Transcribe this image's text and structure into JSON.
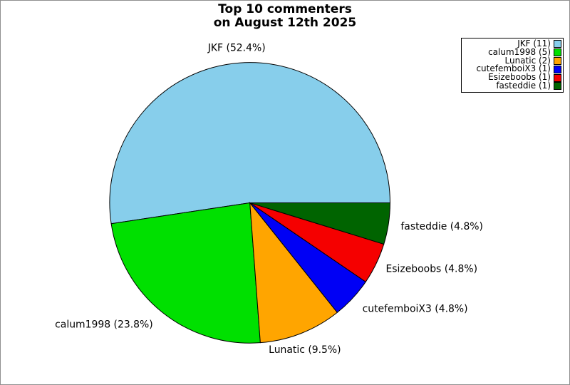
{
  "title": {
    "line1": "Top 10 commenters",
    "line2": "on August 12th 2025"
  },
  "chart_data": {
    "type": "pie",
    "title": "Top 10 commenters on August 12th 2025",
    "total_count": 21,
    "start_angle_deg": 0,
    "direction": "counterclockwise",
    "legend_position": "top-right",
    "background_color": "#FFFFFF",
    "outline_color": "#000000",
    "series": [
      {
        "name": "JKF",
        "count": 11,
        "percent": 52.4,
        "color": "#87CEEB",
        "slice_label": "JKF (52.4%)",
        "legend_label": "JKF (11)"
      },
      {
        "name": "calum1998",
        "count": 5,
        "percent": 23.8,
        "color": "#00E000",
        "slice_label": "calum1998 (23.8%)",
        "legend_label": "calum1998 (5)"
      },
      {
        "name": "Lunatic",
        "count": 2,
        "percent": 9.5,
        "color": "#FFA500",
        "slice_label": "Lunatic (9.5%)",
        "legend_label": "Lunatic (2)"
      },
      {
        "name": "cutefemboiX3",
        "count": 1,
        "percent": 4.8,
        "color": "#0000F5",
        "slice_label": "cutefemboiX3 (4.8%)",
        "legend_label": "cutefemboiX3 (1)"
      },
      {
        "name": "Esizeboobs",
        "count": 1,
        "percent": 4.8,
        "color": "#F50000",
        "slice_label": "Esizeboobs (4.8%)",
        "legend_label": "Esizeboobs (1)"
      },
      {
        "name": "fasteddie",
        "count": 1,
        "percent": 4.8,
        "color": "#006400",
        "slice_label": "fasteddie (4.8%)",
        "legend_label": "fasteddie (1)"
      }
    ]
  }
}
